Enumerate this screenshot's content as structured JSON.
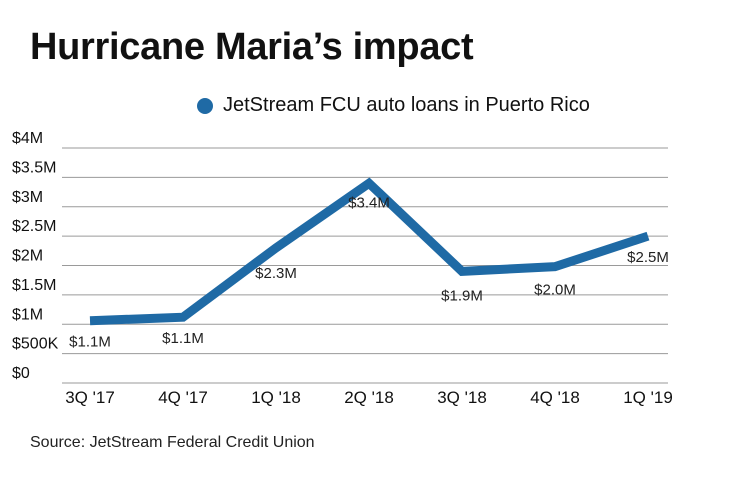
{
  "title": "Hurricane Maria’s impact",
  "source": "Source: JetStream Federal Credit Union",
  "colors": {
    "series": "#1f6aa5",
    "grid": "#9a9a9a"
  },
  "chart_data": {
    "type": "line",
    "title": "Hurricane Maria’s impact",
    "xlabel": "",
    "ylabel": "",
    "ylim": [
      0,
      4
    ],
    "grid": true,
    "legend_position": "top",
    "categories": [
      "3Q '17",
      "4Q '17",
      "1Q '18",
      "2Q '18",
      "3Q '18",
      "4Q '18",
      "1Q '19"
    ],
    "y_ticks": [
      {
        "value": 0,
        "label": "$0"
      },
      {
        "value": 0.5,
        "label": "$500K"
      },
      {
        "value": 1,
        "label": "$1M"
      },
      {
        "value": 1.5,
        "label": "$1.5M"
      },
      {
        "value": 2,
        "label": "$2M"
      },
      {
        "value": 2.5,
        "label": "$2.5M"
      },
      {
        "value": 3,
        "label": "$3M"
      },
      {
        "value": 3.5,
        "label": "$3.5M"
      },
      {
        "value": 4,
        "label": "$4M"
      }
    ],
    "series": [
      {
        "name": "JetStream FCU auto loans in Puerto Rico",
        "values": [
          1.06,
          1.12,
          2.3,
          3.4,
          1.9,
          1.98,
          2.5
        ],
        "data_labels": [
          "$1.1M",
          "$1.1M",
          "$2.3M",
          "$3.4M",
          "$1.9M",
          "$2.0M",
          "$2.5M"
        ]
      }
    ]
  }
}
